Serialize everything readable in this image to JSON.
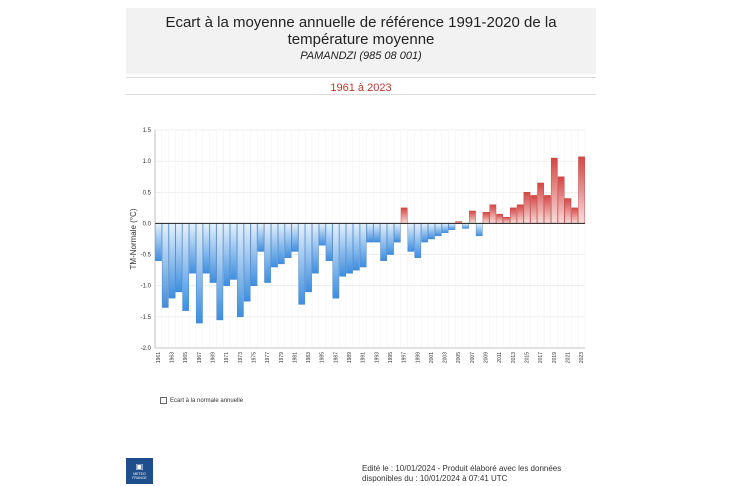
{
  "header": {
    "title_line1": "Ecart à la moyenne annuelle de référence 1991-2020 de la",
    "title_line2": "température moyenne",
    "station": "PAMANDZI (985 08 001)"
  },
  "period": "1961 à 2023",
  "legend": {
    "label": "Ecart à la normale annuelle"
  },
  "logo": {
    "mark": "▣",
    "text": "METEO FRANCE"
  },
  "footer": {
    "line1": "Edité le : 10/01/2024 - Produit élaboré avec les données",
    "line2": "disponibles du : 10/01/2024 à 07:41 UTC"
  },
  "colors": {
    "negative": "#4a90e2",
    "positive": "#d9534f"
  },
  "chart_data": {
    "type": "bar",
    "ylabel": "TM-Normale (°C)",
    "ylim": [
      -2.0,
      1.5
    ],
    "yticks": [
      "1.5",
      "1.0",
      "0.5",
      "0.0",
      "-0.5",
      "-1.0",
      "-1.5",
      "-2.0"
    ],
    "ytick_values": [
      1.5,
      1.0,
      0.5,
      0.0,
      -0.5,
      -1.0,
      -1.5,
      -2.0
    ],
    "xtick_labels": [
      "1961",
      "1963",
      "1965",
      "1967",
      "1969",
      "1971",
      "1973",
      "1975",
      "1977",
      "1979",
      "1981",
      "1983",
      "1985",
      "1987",
      "1989",
      "1991",
      "1993",
      "1995",
      "1997",
      "1999",
      "2001",
      "2003",
      "2005",
      "2007",
      "2009",
      "2011",
      "2013",
      "2015",
      "2017",
      "2019",
      "2021",
      "2023"
    ],
    "categories": [
      1961,
      1962,
      1963,
      1964,
      1965,
      1966,
      1967,
      1968,
      1969,
      1970,
      1971,
      1972,
      1973,
      1974,
      1975,
      1976,
      1977,
      1978,
      1979,
      1980,
      1981,
      1982,
      1983,
      1984,
      1985,
      1986,
      1987,
      1988,
      1989,
      1990,
      1991,
      1992,
      1993,
      1994,
      1995,
      1996,
      1997,
      1998,
      1999,
      2000,
      2001,
      2002,
      2003,
      2004,
      2005,
      2006,
      2007,
      2008,
      2009,
      2010,
      2011,
      2012,
      2013,
      2014,
      2015,
      2016,
      2017,
      2018,
      2019,
      2020,
      2021,
      2022,
      2023
    ],
    "values": [
      -0.6,
      -1.35,
      -1.2,
      -1.1,
      -1.4,
      -0.8,
      -1.6,
      -0.8,
      -0.95,
      -1.55,
      -1.0,
      -0.9,
      -1.5,
      -1.25,
      -1.0,
      -0.45,
      -0.95,
      -0.7,
      -0.65,
      -0.55,
      -0.45,
      -1.3,
      -1.1,
      -0.8,
      -0.35,
      -0.6,
      -1.2,
      -0.85,
      -0.8,
      -0.75,
      -0.7,
      -0.3,
      -0.3,
      -0.6,
      -0.5,
      -0.3,
      0.25,
      -0.45,
      -0.55,
      -0.3,
      -0.25,
      -0.2,
      -0.15,
      -0.1,
      0.03,
      -0.08,
      0.2,
      -0.2,
      0.18,
      0.3,
      0.15,
      0.1,
      0.25,
      0.3,
      0.5,
      0.45,
      0.65,
      0.45,
      1.05,
      0.75,
      0.4,
      0.25,
      1.07
    ],
    "grid": true,
    "legend_position": "bottom-left"
  }
}
